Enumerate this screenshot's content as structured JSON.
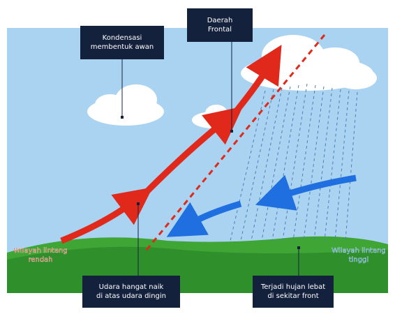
{
  "labels": [
    {
      "id": "kondensasi",
      "lines": [
        "Kondensasi",
        "membentuk awan"
      ]
    },
    {
      "id": "frontal",
      "lines": [
        "Daerah",
        "Frontal"
      ]
    },
    {
      "id": "udara",
      "lines": [
        "Udara hangat naik",
        "di atas udara dingin"
      ]
    },
    {
      "id": "hujan",
      "lines": [
        "Terjadi hujan lebat",
        "di sekitar front"
      ]
    },
    {
      "id": "rendah",
      "lines": [
        "Wilayah lintang",
        "rendah"
      ]
    },
    {
      "id": "tinggi",
      "lines": [
        "Wilayah lintang",
        "tinggi"
      ]
    }
  ]
}
